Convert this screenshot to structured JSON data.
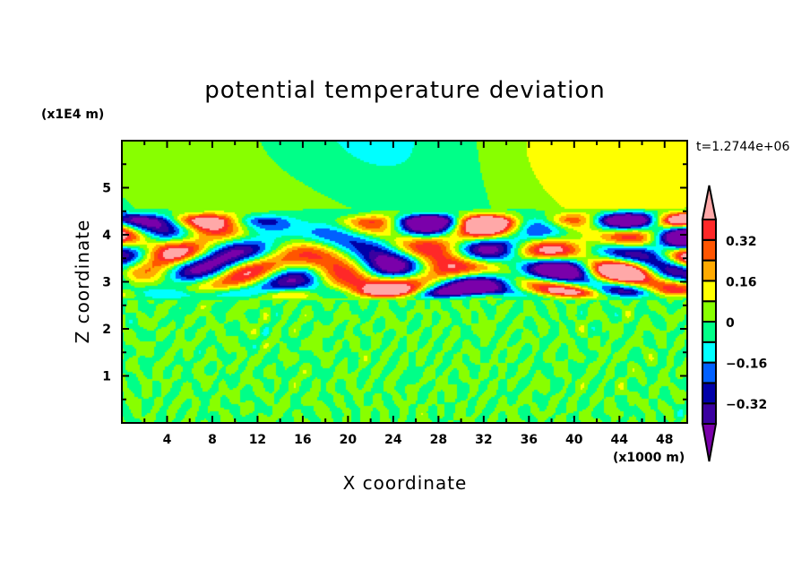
{
  "chart_data": {
    "type": "heatmap",
    "title": "potential temperature deviation",
    "xlabel": "X coordinate",
    "ylabel": "Z coordinate",
    "x_unit": "(x1000 m)",
    "y_unit": "(x1E4 m)",
    "time_label": "t=1.2744e+06",
    "xlim": [
      0,
      50
    ],
    "ylim": [
      0,
      6
    ],
    "x_ticks": [
      4,
      8,
      12,
      16,
      20,
      24,
      28,
      32,
      36,
      40,
      44,
      48
    ],
    "y_ticks": [
      1,
      2,
      3,
      4,
      5
    ],
    "contour_levels": [
      -0.4,
      -0.32,
      -0.24,
      -0.16,
      -0.08,
      0,
      0.08,
      0.16,
      0.24,
      0.32,
      0.4
    ],
    "colorbar_labels": [
      "0.32",
      "0.16",
      "0",
      "-0.16",
      "-0.32"
    ],
    "colorbar_label_values": [
      0.32,
      0.16,
      0,
      -0.16,
      -0.32
    ],
    "colors": [
      "#7a00aa",
      "#3a00a0",
      "#0000a8",
      "#0060ff",
      "#00ffff",
      "#00ff88",
      "#88ff00",
      "#ffff00",
      "#ffaa00",
      "#ff5500",
      "#ff2828",
      "#ffa8a8"
    ]
  }
}
